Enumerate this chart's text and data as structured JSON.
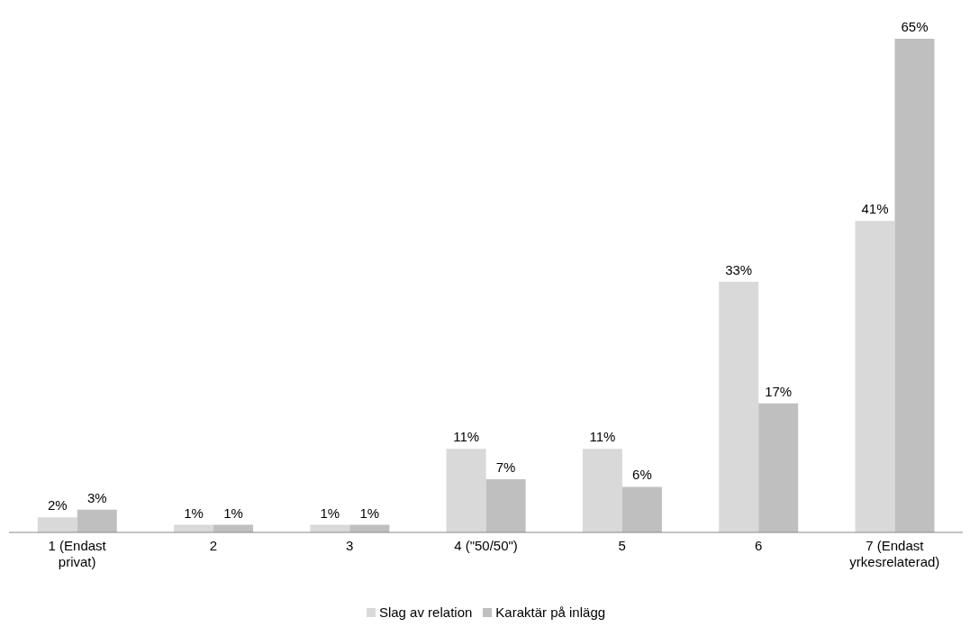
{
  "chart_data": {
    "type": "bar",
    "categories": [
      "1 (Endast privat)",
      "2",
      "3",
      "4 (\"50/50\")",
      "5",
      "6",
      "7 (Endast yrkesrelaterad)"
    ],
    "series": [
      {
        "name": "Slag av relation",
        "color": "#d9d9d9",
        "values": [
          2,
          1,
          1,
          11,
          11,
          33,
          41
        ],
        "value_labels": [
          "2%",
          "1%",
          "1%",
          "11%",
          "11%",
          "33%",
          "41%"
        ]
      },
      {
        "name": "Karaktär på inlägg",
        "color": "#bfbfbf",
        "values": [
          3,
          1,
          1,
          7,
          6,
          17,
          65
        ],
        "value_labels": [
          "3%",
          "1%",
          "1%",
          "7%",
          "6%",
          "17%",
          "65%"
        ]
      }
    ],
    "legend": "bottom",
    "grid": false
  }
}
